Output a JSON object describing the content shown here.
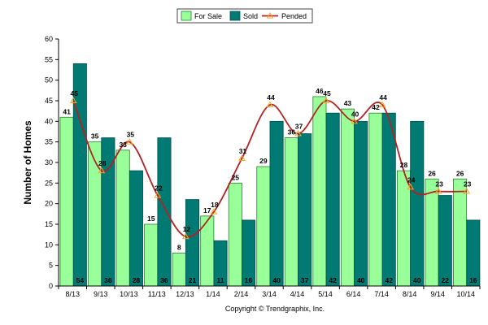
{
  "chart_data": {
    "type": "bar",
    "title": "",
    "xlabel": "",
    "ylabel": "Number of Homes",
    "ylim": [
      0,
      60
    ],
    "yticks": [
      0,
      5,
      10,
      15,
      20,
      25,
      30,
      35,
      40,
      45,
      50,
      55,
      60
    ],
    "grid": false,
    "legend_position": "top-center",
    "categories": [
      "8/13",
      "9/13",
      "10/13",
      "11/13",
      "12/13",
      "1/14",
      "2/14",
      "3/14",
      "4/14",
      "5/14",
      "6/14",
      "7/14",
      "8/14",
      "9/14",
      "10/14"
    ],
    "series": [
      {
        "name": "For Sale",
        "type": "bar",
        "color": "#99ff99",
        "border": "#2e7d32",
        "values": [
          41,
          35,
          33,
          15,
          8,
          17,
          25,
          29,
          36,
          46,
          43,
          42,
          28,
          26,
          26
        ]
      },
      {
        "name": "Sold",
        "type": "bar",
        "color": "#007a73",
        "border": "#004d48",
        "values": [
          54,
          36,
          28,
          36,
          21,
          11,
          16,
          40,
          37,
          42,
          40,
          42,
          40,
          22,
          16
        ]
      },
      {
        "name": "Pended",
        "type": "line",
        "color": "#b22222",
        "marker_color": "#f5a623",
        "values": [
          45,
          28,
          35,
          22,
          12,
          18,
          31,
          44,
          37,
          45,
          40,
          44,
          24,
          23,
          23
        ]
      }
    ],
    "copyright": "Copyright © Trendgraphix, Inc."
  }
}
